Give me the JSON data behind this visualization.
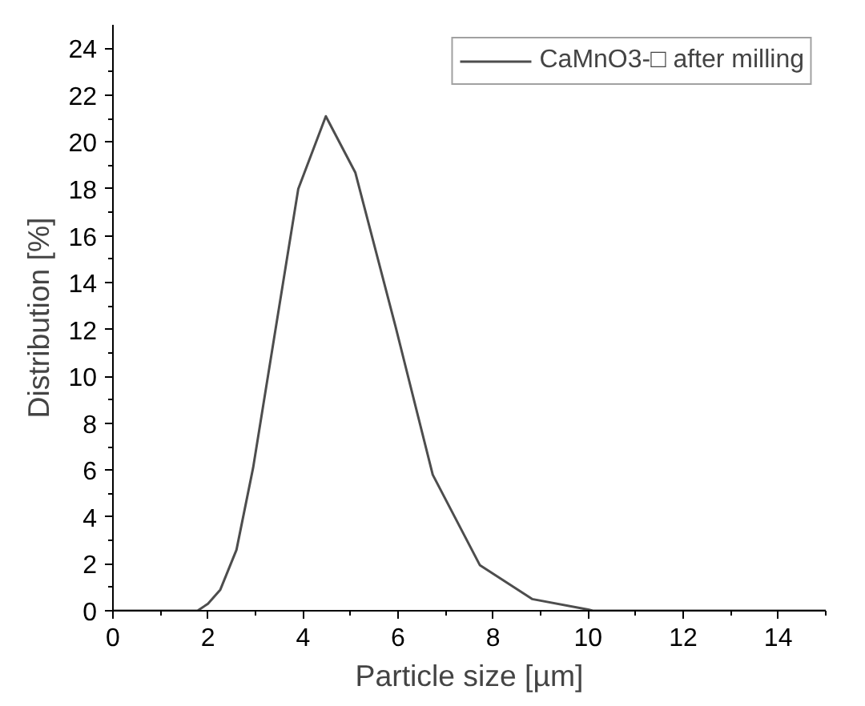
{
  "chart_data": {
    "type": "line",
    "xlabel": "Particle size [µm]",
    "ylabel": "Distribution [%]",
    "xlim": [
      0,
      15
    ],
    "ylim": [
      0,
      25
    ],
    "xticks": [
      0,
      2,
      4,
      6,
      8,
      10,
      12,
      14
    ],
    "yticks": [
      0,
      2,
      4,
      6,
      8,
      10,
      12,
      14,
      16,
      18,
      20,
      22,
      24
    ],
    "grid": false,
    "legend": "top right",
    "marker": "none",
    "line_style": "solid",
    "series": [
      {
        "name": "CaMnO3-□ after milling",
        "color": "#4d4d4d",
        "x": [
          0,
          1.78,
          2.0,
          2.26,
          2.6,
          2.95,
          3.9,
          4.48,
          5.1,
          5.95,
          6.73,
          7.72,
          8.82,
          10.0,
          10.1,
          15
        ],
        "values": [
          0,
          0,
          0.3,
          0.9,
          2.6,
          6.1,
          18.0,
          21.1,
          18.7,
          12.1,
          5.8,
          1.95,
          0.5,
          0.05,
          0,
          0
        ]
      }
    ]
  }
}
